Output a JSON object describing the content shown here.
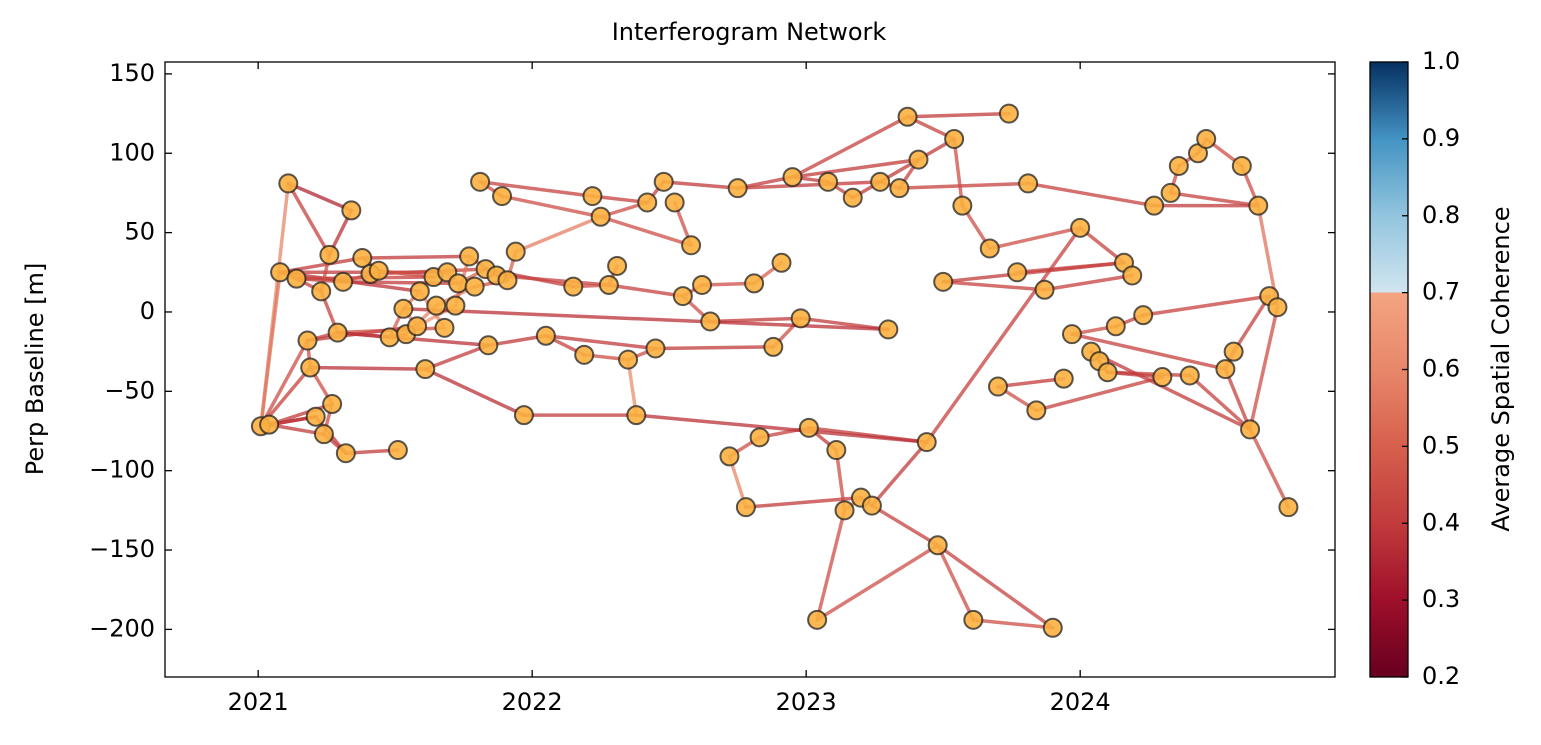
{
  "chart_data": {
    "type": "network",
    "title": "Interferogram Network",
    "ylabel": "Perp Baseline [m]",
    "colorbar_label": "Average Spatial Coherence",
    "xlim": [
      2020.66,
      2024.93
    ],
    "ylim": [
      -230,
      157.5
    ],
    "xticks": [
      2021,
      2022,
      2023,
      2024
    ],
    "yticks": [
      {
        "value": -200,
        "label": "−200"
      },
      {
        "value": -150,
        "label": "−150"
      },
      {
        "value": -100,
        "label": "−100"
      },
      {
        "value": -50,
        "label": "−50"
      },
      0,
      50,
      100,
      150
    ],
    "clim": [
      0.2,
      1.0
    ],
    "cticks": [
      0.2,
      0.3,
      0.4,
      0.5,
      0.6,
      0.7,
      0.8,
      0.9,
      {
        "value": 1,
        "label": "1.0"
      }
    ],
    "colormap": [
      {
        "value": 0.2,
        "color": "#67001f"
      },
      {
        "value": 0.3,
        "color": "#9e0f2a"
      },
      {
        "value": 0.4,
        "color": "#c13b3c"
      },
      {
        "value": 0.5,
        "color": "#d6604d"
      },
      {
        "value": 0.6,
        "color": "#e8876a"
      },
      {
        "value": 0.7,
        "color": "#f4a582"
      },
      {
        "value": 0.7,
        "color": "#d1e5f0"
      },
      {
        "value": 0.8,
        "color": "#92c5de"
      },
      {
        "value": 0.9,
        "color": "#4393c3"
      },
      {
        "value": 1.0,
        "color": "#053061"
      }
    ],
    "node_color": "#fbb040",
    "nodes": [
      {
        "x": 2021.01,
        "y": -72
      },
      {
        "x": 2021.04,
        "y": -71
      },
      {
        "x": 2021.11,
        "y": 81
      },
      {
        "x": 2021.08,
        "y": 25
      },
      {
        "x": 2021.14,
        "y": 21
      },
      {
        "x": 2021.18,
        "y": -18
      },
      {
        "x": 2021.19,
        "y": -35
      },
      {
        "x": 2021.21,
        "y": -66
      },
      {
        "x": 2021.24,
        "y": -77
      },
      {
        "x": 2021.23,
        "y": 13
      },
      {
        "x": 2021.26,
        "y": 36
      },
      {
        "x": 2021.27,
        "y": -58
      },
      {
        "x": 2021.29,
        "y": -13
      },
      {
        "x": 2021.31,
        "y": 19
      },
      {
        "x": 2021.32,
        "y": -89
      },
      {
        "x": 2021.34,
        "y": 64
      },
      {
        "x": 2021.38,
        "y": 34
      },
      {
        "x": 2021.41,
        "y": 24
      },
      {
        "x": 2021.44,
        "y": 26
      },
      {
        "x": 2021.48,
        "y": -16
      },
      {
        "x": 2021.51,
        "y": -87
      },
      {
        "x": 2021.53,
        "y": 2
      },
      {
        "x": 2021.54,
        "y": -14
      },
      {
        "x": 2021.58,
        "y": -9
      },
      {
        "x": 2021.59,
        "y": 13
      },
      {
        "x": 2021.61,
        "y": -36
      },
      {
        "x": 2021.64,
        "y": 22
      },
      {
        "x": 2021.65,
        "y": 4
      },
      {
        "x": 2021.68,
        "y": -10
      },
      {
        "x": 2021.69,
        "y": 25
      },
      {
        "x": 2021.72,
        "y": 4
      },
      {
        "x": 2021.73,
        "y": 18
      },
      {
        "x": 2021.77,
        "y": 35
      },
      {
        "x": 2021.79,
        "y": 16
      },
      {
        "x": 2021.81,
        "y": 82
      },
      {
        "x": 2021.83,
        "y": 27
      },
      {
        "x": 2021.84,
        "y": -21
      },
      {
        "x": 2021.87,
        "y": 23
      },
      {
        "x": 2021.89,
        "y": 73
      },
      {
        "x": 2021.91,
        "y": 20
      },
      {
        "x": 2021.94,
        "y": 38
      },
      {
        "x": 2021.97,
        "y": -65
      },
      {
        "x": 2022.05,
        "y": -15
      },
      {
        "x": 2022.15,
        "y": 16
      },
      {
        "x": 2022.19,
        "y": -27
      },
      {
        "x": 2022.22,
        "y": 73
      },
      {
        "x": 2022.25,
        "y": 60
      },
      {
        "x": 2022.28,
        "y": 17
      },
      {
        "x": 2022.31,
        "y": 29
      },
      {
        "x": 2022.35,
        "y": -30
      },
      {
        "x": 2022.38,
        "y": -65
      },
      {
        "x": 2022.42,
        "y": 69
      },
      {
        "x": 2022.45,
        "y": -23
      },
      {
        "x": 2022.48,
        "y": 82
      },
      {
        "x": 2022.52,
        "y": 69
      },
      {
        "x": 2022.55,
        "y": 10
      },
      {
        "x": 2022.58,
        "y": 42
      },
      {
        "x": 2022.62,
        "y": 17
      },
      {
        "x": 2022.65,
        "y": -6
      },
      {
        "x": 2022.72,
        "y": -91
      },
      {
        "x": 2022.75,
        "y": 78
      },
      {
        "x": 2022.78,
        "y": -123
      },
      {
        "x": 2022.81,
        "y": 18
      },
      {
        "x": 2022.83,
        "y": -79
      },
      {
        "x": 2022.88,
        "y": -22
      },
      {
        "x": 2022.91,
        "y": 31
      },
      {
        "x": 2022.95,
        "y": 85
      },
      {
        "x": 2022.98,
        "y": -4
      },
      {
        "x": 2023.01,
        "y": -73
      },
      {
        "x": 2023.04,
        "y": -194
      },
      {
        "x": 2023.08,
        "y": 82
      },
      {
        "x": 2023.11,
        "y": -87
      },
      {
        "x": 2023.14,
        "y": -125
      },
      {
        "x": 2023.17,
        "y": 72
      },
      {
        "x": 2023.2,
        "y": -117
      },
      {
        "x": 2023.24,
        "y": -122
      },
      {
        "x": 2023.27,
        "y": 82
      },
      {
        "x": 2023.3,
        "y": -11
      },
      {
        "x": 2023.34,
        "y": 78
      },
      {
        "x": 2023.37,
        "y": 123
      },
      {
        "x": 2023.41,
        "y": 96
      },
      {
        "x": 2023.44,
        "y": -82
      },
      {
        "x": 2023.48,
        "y": -147
      },
      {
        "x": 2023.5,
        "y": 19
      },
      {
        "x": 2023.54,
        "y": 109
      },
      {
        "x": 2023.57,
        "y": 67
      },
      {
        "x": 2023.61,
        "y": -194
      },
      {
        "x": 2023.67,
        "y": 40
      },
      {
        "x": 2023.7,
        "y": -47
      },
      {
        "x": 2023.74,
        "y": 125
      },
      {
        "x": 2023.77,
        "y": 25
      },
      {
        "x": 2023.81,
        "y": 81
      },
      {
        "x": 2023.84,
        "y": -62
      },
      {
        "x": 2023.87,
        "y": 14
      },
      {
        "x": 2023.9,
        "y": -199
      },
      {
        "x": 2023.94,
        "y": -42
      },
      {
        "x": 2023.97,
        "y": -14
      },
      {
        "x": 2024.0,
        "y": 53
      },
      {
        "x": 2024.04,
        "y": -25
      },
      {
        "x": 2024.07,
        "y": -31
      },
      {
        "x": 2024.1,
        "y": -38
      },
      {
        "x": 2024.13,
        "y": -9
      },
      {
        "x": 2024.16,
        "y": 31
      },
      {
        "x": 2024.19,
        "y": 23
      },
      {
        "x": 2024.23,
        "y": -2
      },
      {
        "x": 2024.27,
        "y": 67
      },
      {
        "x": 2024.3,
        "y": -41
      },
      {
        "x": 2024.33,
        "y": 75
      },
      {
        "x": 2024.36,
        "y": 92
      },
      {
        "x": 2024.4,
        "y": -40
      },
      {
        "x": 2024.43,
        "y": 100
      },
      {
        "x": 2024.46,
        "y": 109
      },
      {
        "x": 2024.53,
        "y": -36
      },
      {
        "x": 2024.56,
        "y": -25
      },
      {
        "x": 2024.59,
        "y": 92
      },
      {
        "x": 2024.62,
        "y": -74
      },
      {
        "x": 2024.65,
        "y": 67
      },
      {
        "x": 2024.69,
        "y": 10
      },
      {
        "x": 2024.72,
        "y": 3
      },
      {
        "x": 2024.76,
        "y": -123
      }
    ],
    "edges": [
      [
        0,
        2,
        0.6
      ],
      [
        0,
        1,
        0.4
      ],
      [
        0,
        3,
        0.55
      ],
      [
        0,
        5,
        0.45
      ],
      [
        0,
        6,
        0.42
      ],
      [
        0,
        7,
        0.4
      ],
      [
        1,
        8,
        0.4
      ],
      [
        1,
        11,
        0.4
      ],
      [
        1,
        7,
        0.38
      ],
      [
        2,
        15,
        0.35
      ],
      [
        2,
        10,
        0.42
      ],
      [
        3,
        4,
        0.4
      ],
      [
        3,
        24,
        0.38
      ],
      [
        3,
        16,
        0.4
      ],
      [
        3,
        29,
        0.4
      ],
      [
        4,
        9,
        0.42
      ],
      [
        4,
        13,
        0.4
      ],
      [
        4,
        26,
        0.42
      ],
      [
        5,
        12,
        0.4
      ],
      [
        5,
        6,
        0.45
      ],
      [
        5,
        23,
        0.4
      ],
      [
        6,
        25,
        0.38
      ],
      [
        6,
        11,
        0.45
      ],
      [
        8,
        14,
        0.4
      ],
      [
        14,
        20,
        0.4
      ],
      [
        8,
        11,
        0.45
      ],
      [
        7,
        14,
        0.4
      ],
      [
        9,
        10,
        0.45
      ],
      [
        9,
        12,
        0.42
      ],
      [
        12,
        19,
        0.4
      ],
      [
        12,
        28,
        0.45
      ],
      [
        12,
        36,
        0.38
      ],
      [
        13,
        17,
        0.45
      ],
      [
        13,
        31,
        0.4
      ],
      [
        15,
        10,
        0.38
      ],
      [
        16,
        32,
        0.4
      ],
      [
        16,
        18,
        0.45
      ],
      [
        17,
        35,
        0.42
      ],
      [
        18,
        26,
        0.45
      ],
      [
        19,
        21,
        0.5
      ],
      [
        19,
        22,
        0.45
      ],
      [
        21,
        24,
        0.55
      ],
      [
        21,
        23,
        0.6
      ],
      [
        22,
        27,
        0.6
      ],
      [
        23,
        30,
        0.65
      ],
      [
        24,
        28,
        0.6
      ],
      [
        25,
        41,
        0.38
      ],
      [
        25,
        36,
        0.4
      ],
      [
        26,
        29,
        0.5
      ],
      [
        27,
        33,
        0.6
      ],
      [
        29,
        31,
        0.55
      ],
      [
        30,
        32,
        0.55
      ],
      [
        31,
        35,
        0.5
      ],
      [
        32,
        37,
        0.5
      ],
      [
        33,
        39,
        0.45
      ],
      [
        34,
        45,
        0.42
      ],
      [
        34,
        38,
        0.45
      ],
      [
        35,
        43,
        0.4
      ],
      [
        36,
        42,
        0.4
      ],
      [
        37,
        47,
        0.42
      ],
      [
        38,
        46,
        0.45
      ],
      [
        39,
        40,
        0.5
      ],
      [
        40,
        46,
        0.58
      ],
      [
        41,
        50,
        0.4
      ],
      [
        42,
        44,
        0.42
      ],
      [
        42,
        52,
        0.4
      ],
      [
        43,
        47,
        0.45
      ],
      [
        44,
        49,
        0.45
      ],
      [
        45,
        51,
        0.42
      ],
      [
        46,
        51,
        0.45
      ],
      [
        46,
        56,
        0.45
      ],
      [
        47,
        48,
        0.45
      ],
      [
        47,
        55,
        0.42
      ],
      [
        49,
        50,
        0.62
      ],
      [
        49,
        52,
        0.45
      ],
      [
        51,
        53,
        0.42
      ],
      [
        52,
        64,
        0.4
      ],
      [
        53,
        60,
        0.4
      ],
      [
        54,
        56,
        0.45
      ],
      [
        55,
        57,
        0.45
      ],
      [
        57,
        62,
        0.45
      ],
      [
        58,
        67,
        0.4
      ],
      [
        58,
        55,
        0.45
      ],
      [
        60,
        66,
        0.4
      ],
      [
        61,
        59,
        0.6
      ],
      [
        61,
        74,
        0.4
      ],
      [
        59,
        63,
        0.45
      ],
      [
        63,
        68,
        0.42
      ],
      [
        64,
        67,
        0.45
      ],
      [
        62,
        65,
        0.5
      ],
      [
        66,
        79,
        0.42
      ],
      [
        66,
        70,
        0.4
      ],
      [
        68,
        71,
        0.4
      ],
      [
        68,
        81,
        0.4
      ],
      [
        69,
        72,
        0.45
      ],
      [
        69,
        82,
        0.45
      ],
      [
        71,
        72,
        0.45
      ],
      [
        72,
        74,
        0.58
      ],
      [
        73,
        70,
        0.42
      ],
      [
        73,
        84,
        0.4
      ],
      [
        74,
        75,
        0.42
      ],
      [
        75,
        82,
        0.42
      ],
      [
        75,
        81,
        0.4
      ],
      [
        76,
        78,
        0.42
      ],
      [
        76,
        60,
        0.4
      ],
      [
        77,
        67,
        0.4
      ],
      [
        77,
        21,
        0.38
      ],
      [
        78,
        91,
        0.42
      ],
      [
        78,
        80,
        0.42
      ],
      [
        79,
        84,
        0.42
      ],
      [
        79,
        89,
        0.4
      ],
      [
        80,
        66,
        0.4
      ],
      [
        81,
        50,
        0.38
      ],
      [
        81,
        97,
        0.42
      ],
      [
        82,
        86,
        0.45
      ],
      [
        82,
        94,
        0.42
      ],
      [
        85,
        84,
        0.45
      ],
      [
        85,
        87,
        0.45
      ],
      [
        86,
        94,
        0.45
      ],
      [
        87,
        97,
        0.45
      ],
      [
        88,
        95,
        0.4
      ],
      [
        88,
        92,
        0.45
      ],
      [
        83,
        93,
        0.42
      ],
      [
        83,
        102,
        0.4
      ],
      [
        90,
        102,
        0.42
      ],
      [
        93,
        103,
        0.42
      ],
      [
        96,
        101,
        0.45
      ],
      [
        96,
        112,
        0.42
      ],
      [
        97,
        102,
        0.42
      ],
      [
        98,
        99,
        0.45
      ],
      [
        99,
        100,
        0.42
      ],
      [
        100,
        106,
        0.4
      ],
      [
        100,
        109,
        0.4
      ],
      [
        101,
        104,
        0.42
      ],
      [
        104,
        117,
        0.42
      ],
      [
        105,
        116,
        0.4
      ],
      [
        105,
        91,
        0.42
      ],
      [
        106,
        92,
        0.42
      ],
      [
        107,
        108,
        0.45
      ],
      [
        107,
        116,
        0.42
      ],
      [
        108,
        110,
        0.45
      ],
      [
        110,
        111,
        0.45
      ],
      [
        111,
        114,
        0.45
      ],
      [
        112,
        113,
        0.42
      ],
      [
        109,
        115,
        0.42
      ],
      [
        113,
        117,
        0.42
      ],
      [
        114,
        116,
        0.45
      ],
      [
        115,
        118,
        0.45
      ],
      [
        115,
        119,
        0.45
      ],
      [
        116,
        118,
        0.55
      ],
      [
        112,
        115,
        0.42
      ],
      [
        98,
        115,
        0.4
      ]
    ]
  }
}
